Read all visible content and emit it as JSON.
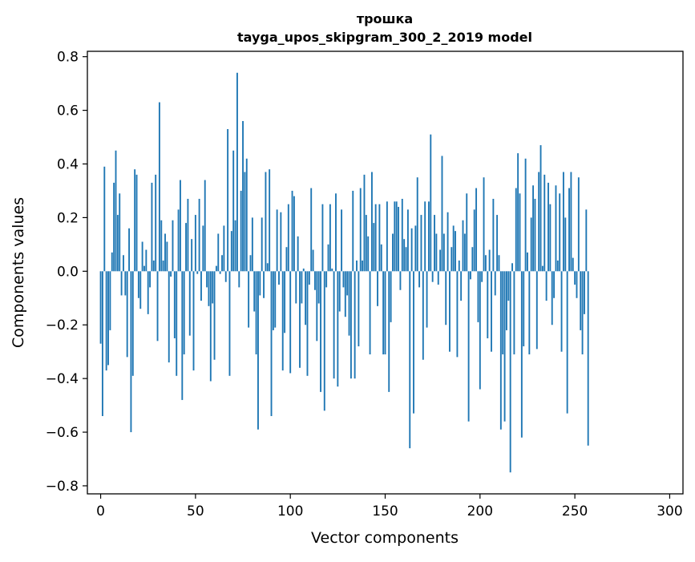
{
  "chart_data": {
    "type": "bar",
    "title_line1": "трошка",
    "title_line2": "tayga_upos_skipgram_300_2_2019 model",
    "xlabel": "Vector components",
    "ylabel": "Components values",
    "xlim": [
      -7,
      307
    ],
    "ylim": [
      -0.83,
      0.82
    ],
    "x_ticks": [
      0,
      50,
      100,
      150,
      200,
      250,
      300
    ],
    "x_tick_labels": [
      "0",
      "50",
      "100",
      "150",
      "200",
      "250",
      "300"
    ],
    "y_ticks": [
      0.8,
      0.6,
      0.4,
      0.2,
      0.0,
      -0.2,
      -0.4,
      -0.6,
      -0.8
    ],
    "y_tick_labels": [
      "0.8",
      "0.6",
      "0.4",
      "0.2",
      "0.0",
      "−0.2",
      "−0.4",
      "−0.6",
      "−0.8"
    ],
    "bar_color": "#1f77b4",
    "grid": false,
    "values": [
      -0.27,
      -0.54,
      0.39,
      -0.37,
      -0.35,
      -0.22,
      0.07,
      0.33,
      0.45,
      0.21,
      0.29,
      -0.09,
      0.06,
      -0.09,
      -0.32,
      0.16,
      -0.6,
      -0.39,
      0.38,
      0.36,
      -0.1,
      -0.14,
      0.11,
      0.02,
      0.08,
      -0.16,
      -0.06,
      0.33,
      0.04,
      0.36,
      -0.26,
      0.63,
      0.19,
      0.04,
      0.14,
      0.11,
      -0.34,
      -0.02,
      0.19,
      -0.25,
      -0.39,
      0.23,
      0.34,
      -0.48,
      -0.31,
      0.18,
      0.27,
      -0.24,
      0.12,
      -0.37,
      0.21,
      -0.01,
      0.27,
      -0.11,
      0.17,
      0.34,
      -0.06,
      -0.13,
      -0.41,
      -0.12,
      -0.33,
      0.02,
      0.14,
      -0.01,
      0.06,
      0.17,
      -0.04,
      0.53,
      -0.39,
      0.15,
      0.45,
      0.19,
      0.74,
      -0.06,
      0.3,
      0.56,
      0.37,
      0.42,
      -0.21,
      0.06,
      0.2,
      -0.15,
      -0.31,
      -0.59,
      -0.09,
      0.2,
      -0.1,
      0.37,
      0.03,
      0.38,
      -0.54,
      -0.22,
      -0.21,
      0.23,
      -0.05,
      0.22,
      -0.37,
      -0.23,
      0.09,
      0.25,
      -0.38,
      0.3,
      0.28,
      -0.12,
      0.13,
      -0.36,
      -0.12,
      0.01,
      -0.2,
      -0.39,
      -0.05,
      0.31,
      0.08,
      -0.07,
      -0.26,
      -0.12,
      -0.45,
      0.25,
      -0.52,
      -0.06,
      0.1,
      0.25,
      0.01,
      -0.4,
      0.29,
      -0.43,
      -0.15,
      0.23,
      -0.06,
      -0.17,
      -0.09,
      -0.24,
      -0.4,
      0.3,
      -0.4,
      0.04,
      -0.28,
      0.31,
      0.04,
      0.36,
      0.21,
      0.13,
      -0.31,
      0.37,
      0.18,
      0.25,
      -0.13,
      0.25,
      0.1,
      -0.31,
      -0.31,
      0.26,
      -0.45,
      -0.19,
      0.14,
      0.26,
      0.26,
      0.24,
      -0.07,
      0.27,
      0.12,
      0.09,
      0.23,
      -0.66,
      0.16,
      -0.53,
      0.17,
      0.35,
      -0.06,
      0.21,
      -0.33,
      0.26,
      -0.21,
      0.26,
      0.51,
      -0.04,
      0.21,
      0.14,
      -0.05,
      0.08,
      0.43,
      0.14,
      -0.2,
      0.22,
      -0.3,
      0.09,
      0.17,
      0.15,
      -0.32,
      0.04,
      -0.11,
      0.19,
      0.14,
      0.29,
      -0.56,
      -0.03,
      0.09,
      0.23,
      0.31,
      -0.19,
      -0.44,
      -0.04,
      0.35,
      0.06,
      -0.25,
      0.08,
      -0.3,
      0.27,
      -0.09,
      0.21,
      0.06,
      -0.59,
      -0.31,
      -0.56,
      -0.22,
      -0.11,
      -0.75,
      0.03,
      -0.31,
      0.31,
      0.44,
      0.29,
      -0.62,
      -0.28,
      0.42,
      0.07,
      -0.31,
      0.2,
      0.32,
      0.27,
      -0.29,
      0.37,
      0.47,
      0.02,
      0.36,
      -0.11,
      0.33,
      0.25,
      -0.2,
      -0.1,
      0.32,
      0.04,
      0.29,
      -0.3,
      0.37,
      0.2,
      -0.53,
      0.31,
      0.37,
      0.05,
      -0.05,
      -0.1,
      0.35,
      -0.22,
      -0.31,
      -0.16,
      0.23,
      -0.65
    ]
  }
}
